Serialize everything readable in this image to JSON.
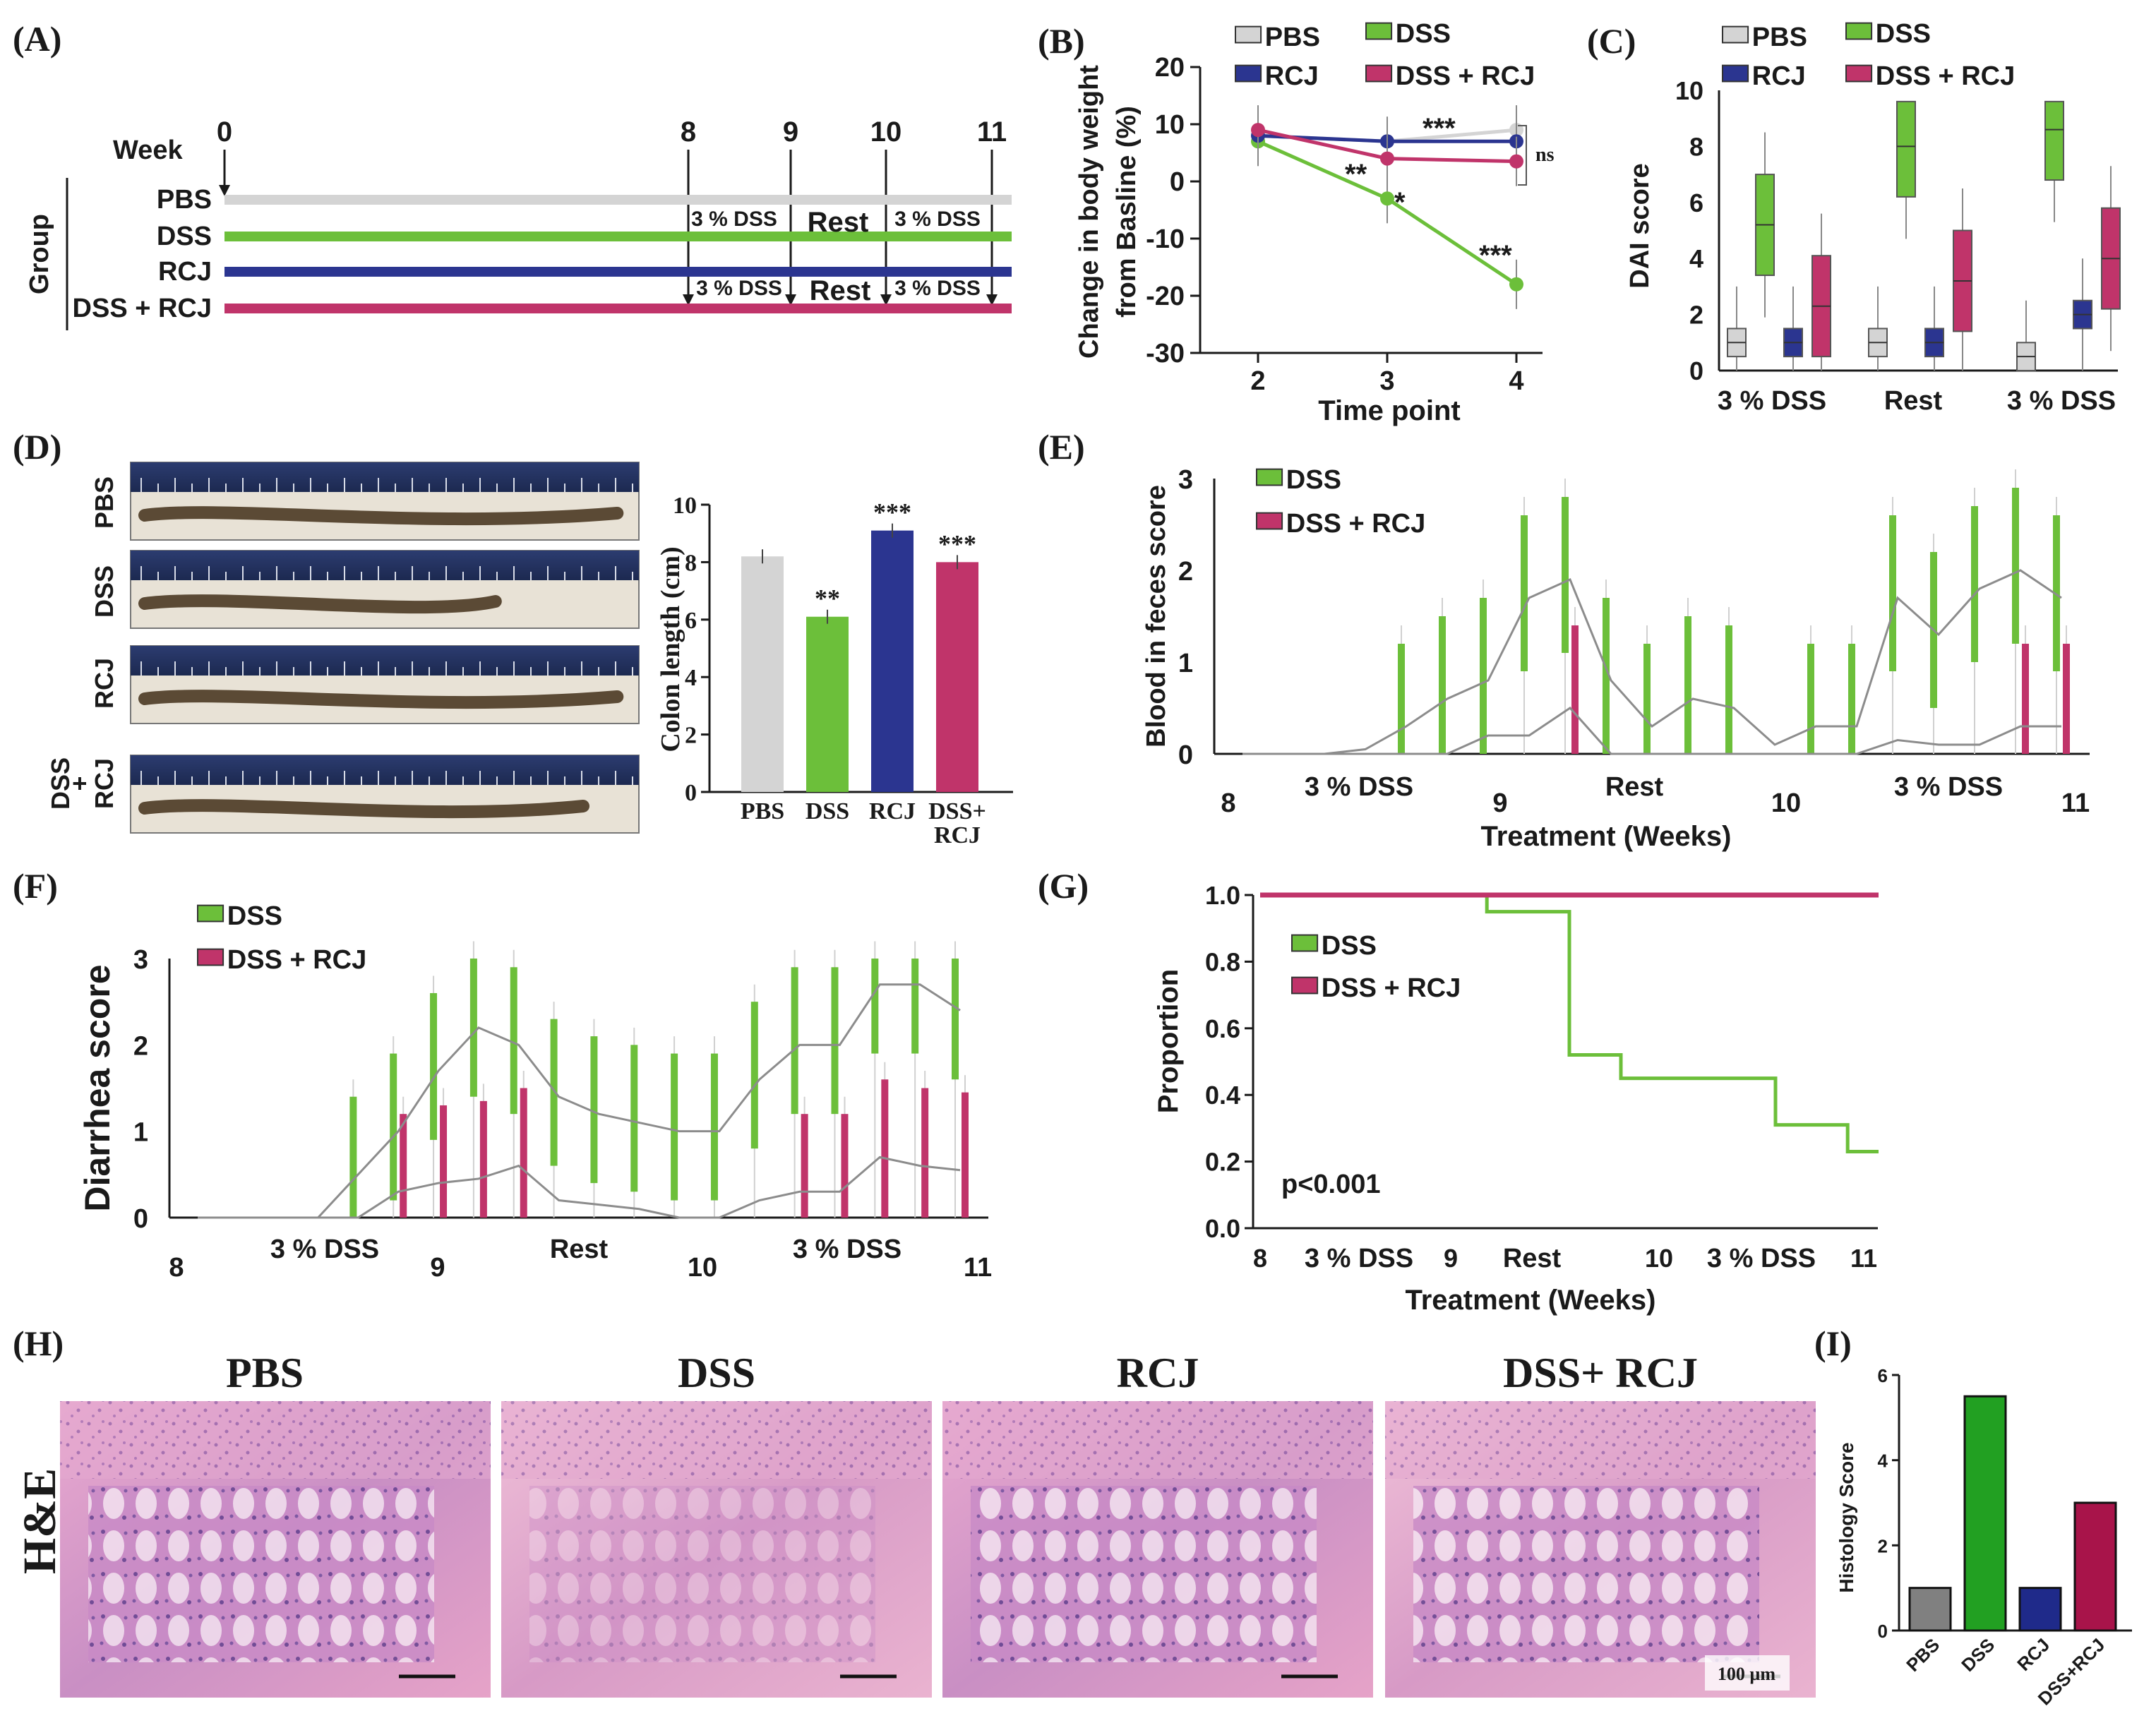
{
  "colors": {
    "pbs": "#d4d4d4",
    "dss": "#6cbf3a",
    "rcj": "#2b3590",
    "dss_rcj": "#c0346a",
    "axis": "#1a1a1a",
    "grey_line": "#8c8c8c"
  },
  "legend": {
    "pbs": "PBS",
    "dss": "DSS",
    "rcj": "RCJ",
    "dss_rcj": "DSS + RCJ"
  },
  "panelA": {
    "label": "(A)",
    "week_title": "Week",
    "group_title": "Group",
    "weeks": [
      "0",
      "8",
      "9",
      "10",
      "11"
    ],
    "groups": [
      "PBS",
      "DSS",
      "RCJ",
      "DSS + RCJ"
    ],
    "phase_labels": [
      "3 % DSS",
      "Rest",
      "3 % DSS",
      "3 % DSS",
      "Rest",
      "3 % DSS"
    ]
  },
  "chart_data": [
    {
      "id": "B",
      "type": "line",
      "label": "(B)",
      "xlabel": "Time point",
      "ylabel": "Change in body weight from Basline (%)",
      "ylabel_lines": [
        "Change in body weight",
        "from Basline (%)"
      ],
      "x": [
        2,
        3,
        4
      ],
      "xticks": [
        "2",
        "3",
        "4"
      ],
      "yticks": [
        "20",
        "10",
        "0",
        "-10",
        "-20",
        "-30"
      ],
      "ylim": [
        -30,
        20
      ],
      "series": [
        {
          "name": "PBS",
          "values": [
            8,
            7,
            9
          ]
        },
        {
          "name": "DSS",
          "values": [
            7,
            -3,
            -18
          ]
        },
        {
          "name": "RCJ",
          "values": [
            8,
            7,
            7
          ]
        },
        {
          "name": "DSS + RCJ",
          "values": [
            9,
            4,
            3.5
          ]
        }
      ],
      "annotations": [
        "***",
        "**",
        "*",
        "***",
        "ns"
      ]
    },
    {
      "id": "C",
      "type": "box",
      "label": "(C)",
      "ylabel": "DAI score",
      "categories": [
        "3 % DSS",
        "Rest",
        "3 % DSS"
      ],
      "yticks": [
        "0",
        "2",
        "4",
        "6",
        "8",
        "10"
      ],
      "ylim": [
        0,
        10
      ],
      "series": [
        {
          "name": "PBS",
          "median": [
            1,
            1,
            0.5
          ]
        },
        {
          "name": "DSS",
          "median": [
            5.2,
            8,
            8.6
          ]
        },
        {
          "name": "RCJ",
          "median": [
            1,
            1,
            2
          ]
        },
        {
          "name": "DSS + RCJ",
          "median": [
            2.3,
            3.2,
            4
          ]
        }
      ]
    },
    {
      "id": "D",
      "type": "bar",
      "label": "(D)",
      "ylabel": "Colon length (cm)",
      "categories": [
        "PBS",
        "DSS",
        "RCJ",
        "DSS+ RCJ"
      ],
      "category_lines": [
        [
          "PBS"
        ],
        [
          "DSS"
        ],
        [
          "RCJ"
        ],
        [
          "DSS+",
          "RCJ"
        ]
      ],
      "values": [
        8.2,
        6.1,
        9.1,
        8.0
      ],
      "yticks": [
        "0",
        "2",
        "4",
        "6",
        "8",
        "10"
      ],
      "ylim": [
        0,
        10
      ],
      "annotations": [
        "",
        "**",
        "***",
        "***"
      ],
      "photo_labels": [
        "PBS",
        "DSS",
        "RCJ",
        "DSS",
        "+",
        "RCJ"
      ]
    },
    {
      "id": "E",
      "type": "line",
      "label": "(E)",
      "xlabel": "Treatment (Weeks)",
      "ylabel": "Blood in feces score",
      "xticks": [
        "8",
        "9",
        "10",
        "11"
      ],
      "yticks": [
        "0",
        "1",
        "2",
        "3"
      ],
      "phase_labels": [
        "3 % DSS",
        "Rest",
        "3 % DSS"
      ],
      "ylim": [
        0,
        3
      ],
      "series": [
        {
          "name": "DSS",
          "values": [
            0,
            0,
            0,
            0.05,
            0.3,
            0.6,
            0.8,
            1.7,
            1.9,
            0.8,
            0.3,
            0.6,
            0.5,
            0.1,
            0.3,
            0.3,
            1.7,
            1.3,
            1.8,
            2.0,
            1.7
          ]
        },
        {
          "name": "DSS + RCJ",
          "values": [
            0,
            0,
            0,
            0,
            0,
            0,
            0.2,
            0.2,
            0.5,
            0,
            0,
            0,
            0,
            0,
            0,
            0,
            0.15,
            0.1,
            0.1,
            0.3,
            0.3
          ]
        }
      ]
    },
    {
      "id": "F",
      "type": "line",
      "label": "(F)",
      "xlabel": "",
      "ylabel": "Diarrhea score",
      "xticks": [
        "8",
        "9",
        "10",
        "11"
      ],
      "yticks": [
        "0",
        "1",
        "2",
        "3"
      ],
      "phase_labels": [
        "3 % DSS",
        "Rest",
        "3 % DSS"
      ],
      "ylim": [
        0,
        3
      ],
      "series": [
        {
          "name": "DSS",
          "values": [
            0,
            0,
            0,
            0,
            0.5,
            1.0,
            1.7,
            2.2,
            2.0,
            1.4,
            1.2,
            1.1,
            1.0,
            1.0,
            1.6,
            2.0,
            2.0,
            2.7,
            2.7,
            2.4
          ]
        },
        {
          "name": "DSS + RCJ",
          "values": [
            0,
            0,
            0,
            0,
            0,
            0.3,
            0.4,
            0.45,
            0.6,
            0.2,
            0.15,
            0.1,
            0,
            0,
            0.2,
            0.3,
            0.3,
            0.7,
            0.6,
            0.55
          ]
        }
      ]
    },
    {
      "id": "G",
      "type": "line",
      "label": "(G)",
      "xlabel": "Treatment (Weeks)",
      "ylabel": "Proportion",
      "xticks": [
        "8",
        "9",
        "10",
        "11"
      ],
      "yticks": [
        "0.0",
        "0.2",
        "0.4",
        "0.6",
        "0.8",
        "1.0"
      ],
      "phase_labels": [
        "3 % DSS",
        "Rest",
        "3 % DSS"
      ],
      "ylim": [
        0,
        1
      ],
      "pvalue": "p<0.001",
      "series": [
        {
          "name": "DSS",
          "x": [
            8,
            9.1,
            9.1,
            9.5,
            9.5,
            9.75,
            9.75,
            10.5,
            10.5,
            10.85,
            10.85,
            11
          ],
          "values": [
            1,
            1,
            0.95,
            0.95,
            0.52,
            0.52,
            0.45,
            0.45,
            0.31,
            0.31,
            0.23,
            0.23
          ]
        },
        {
          "name": "DSS + RCJ",
          "x": [
            8,
            11
          ],
          "values": [
            1,
            1
          ]
        }
      ]
    },
    {
      "id": "I",
      "type": "bar",
      "label": "(I)",
      "ylabel": "Histology Score",
      "categories": [
        "PBS",
        "DSS",
        "RCJ",
        "DSS+RCJ"
      ],
      "values": [
        1,
        5.5,
        1,
        3
      ],
      "yticks": [
        "0",
        "2",
        "4",
        "6"
      ],
      "ylim": [
        0,
        6
      ]
    }
  ],
  "panelH": {
    "label": "(H)",
    "stain": "H&E",
    "images": [
      "PBS",
      "DSS",
      "RCJ",
      "DSS+ RCJ"
    ],
    "scale_bar": "100 µm"
  }
}
